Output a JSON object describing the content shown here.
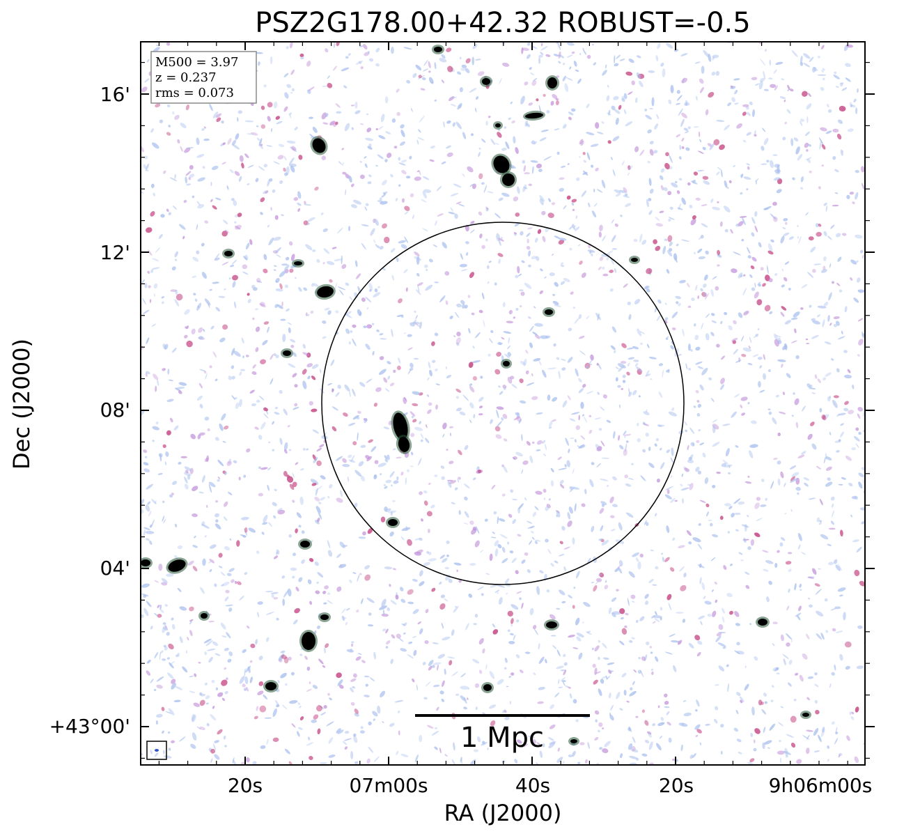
{
  "figure": {
    "title": "PSZ2G178.00+42.32 ROBUST=-0.5",
    "xlabel": "RA (J2000)",
    "ylabel": "Dec (J2000)",
    "info_box": {
      "lines": [
        "M500 = 3.97",
        "z = 0.237",
        "rms = 0.073"
      ]
    },
    "scale_bar": {
      "label": "1 Mpc"
    },
    "x_ticks": [
      "20s",
      "07m00s",
      "40s",
      "20s",
      "9h06m00s"
    ],
    "y_ticks": [
      "16'",
      "12'",
      "08'",
      "04'",
      "+43°00'"
    ],
    "colors": {
      "noise_blue": "#aac0ee",
      "noise_purple": "#c090d8",
      "noise_magenta": "#c8508a",
      "source_core": "#000000",
      "source_edge": "#2a5a3a",
      "frame": "#000000"
    }
  }
}
